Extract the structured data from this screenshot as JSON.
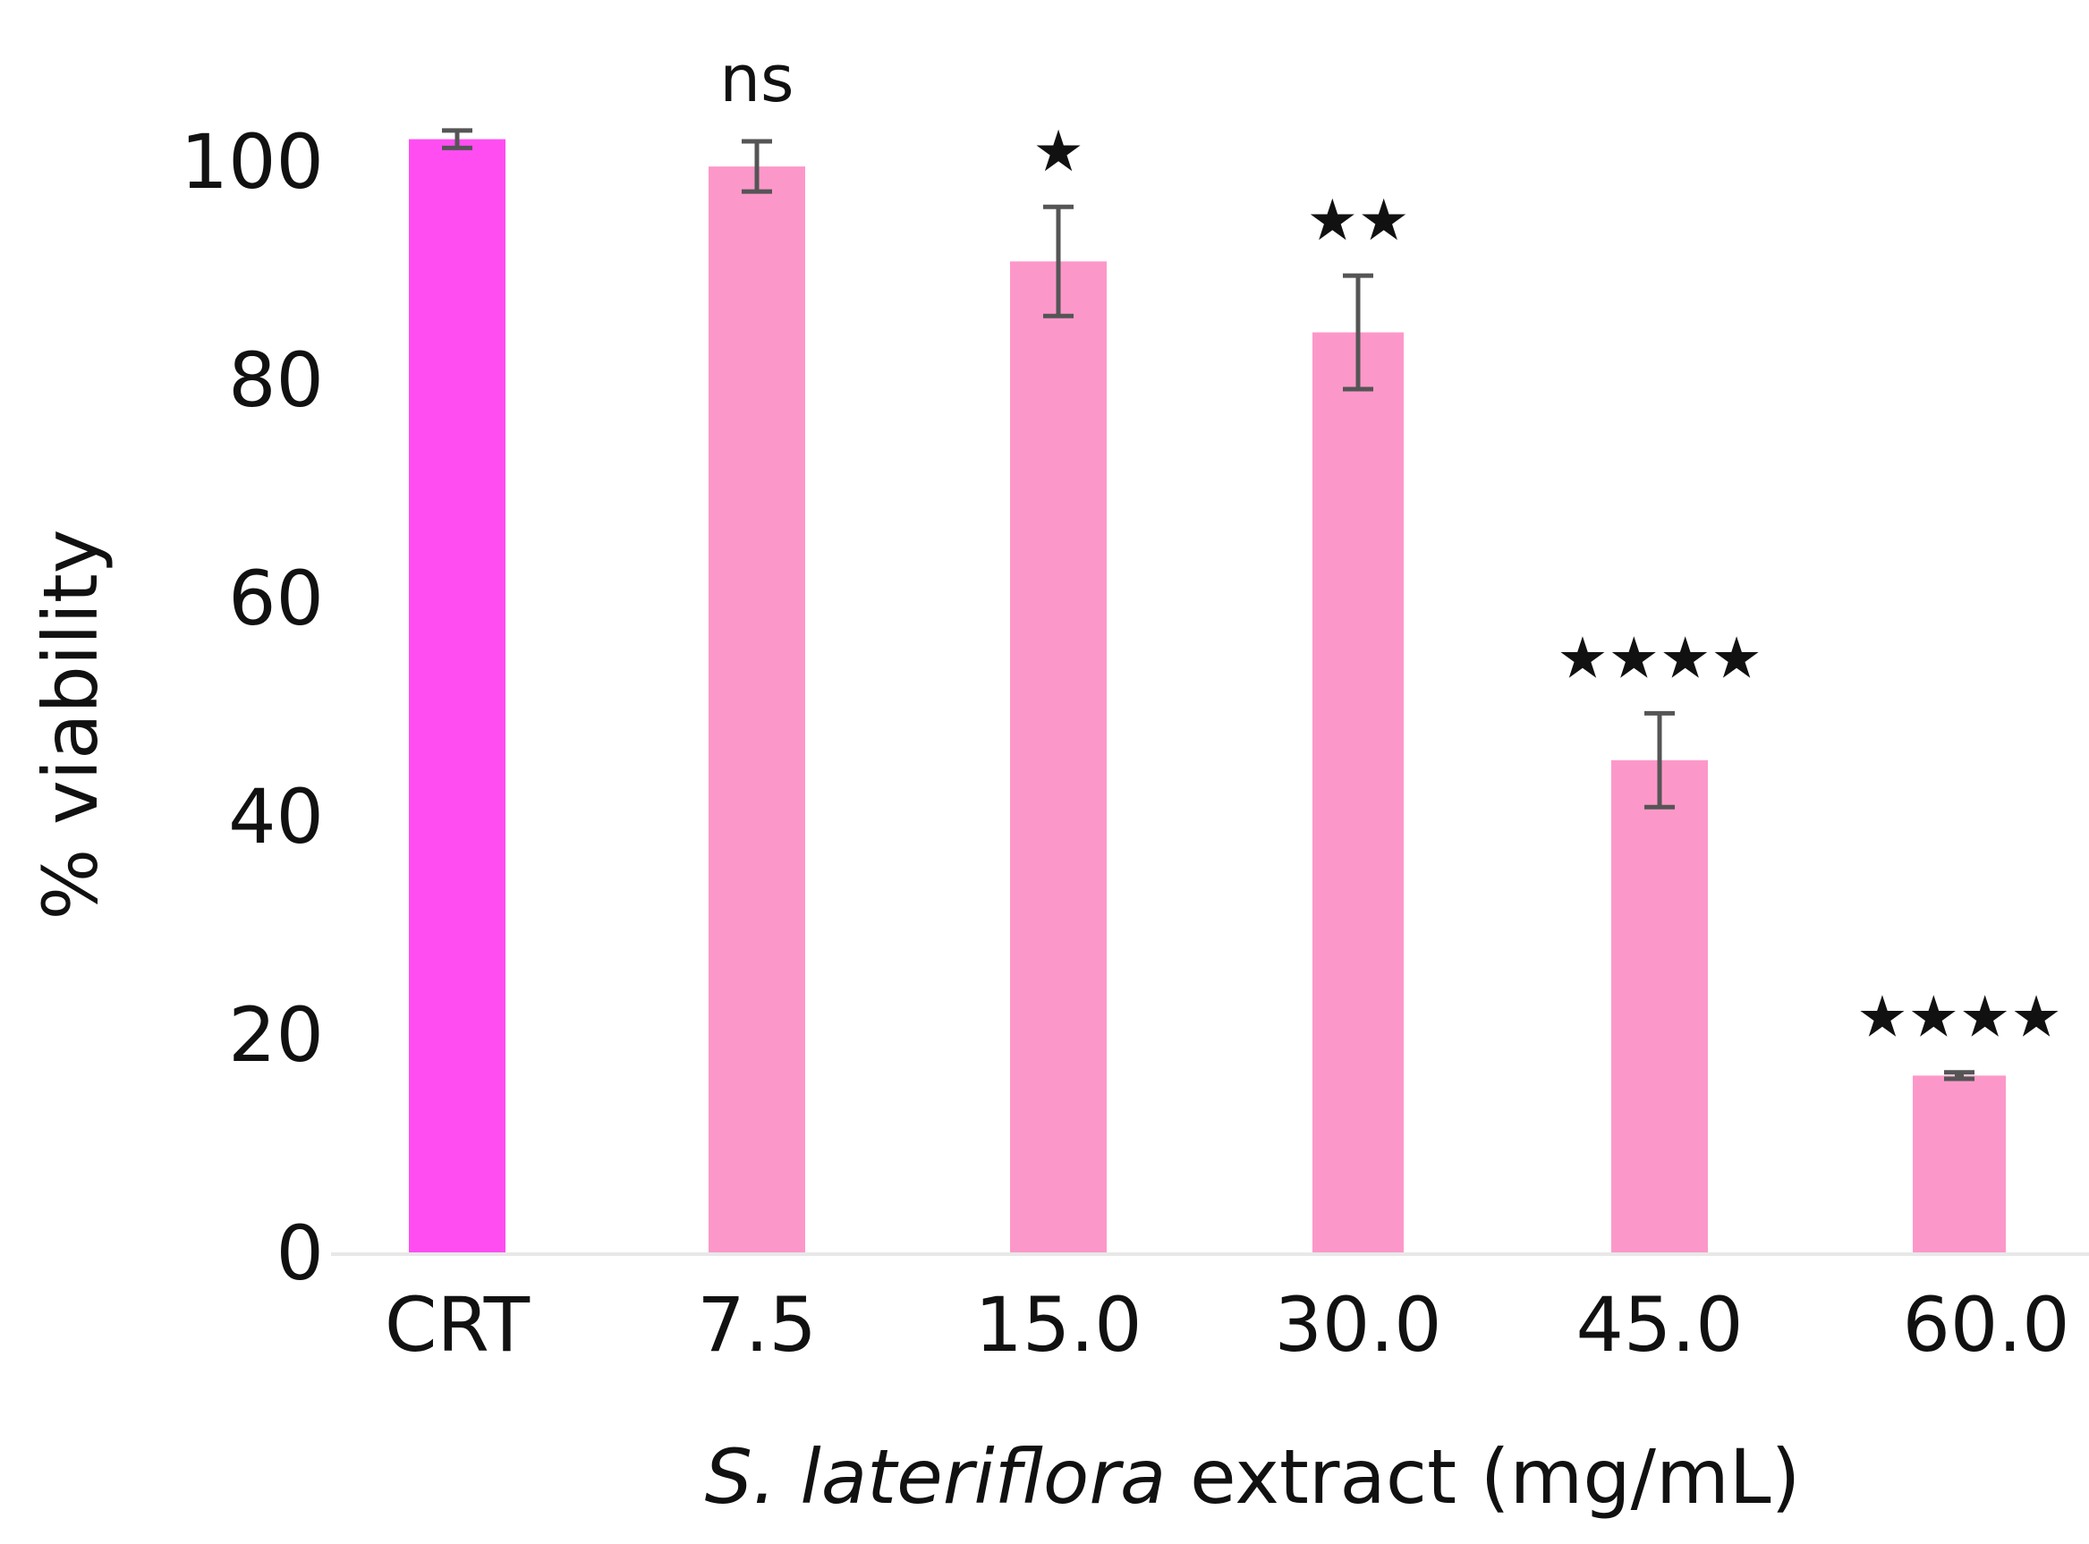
{
  "chart_data": {
    "type": "bar",
    "title": "",
    "categories": [
      "CRT",
      "7.5",
      "15.0",
      "30.0",
      "45.0",
      "60.0"
    ],
    "values": [
      102,
      99.5,
      90.8,
      84.3,
      45.1,
      16.2
    ],
    "errors": [
      0.8,
      2.3,
      5.0,
      5.2,
      4.3,
      0.3
    ],
    "significance": [
      "",
      "ns",
      "★",
      "★★",
      "★★★★",
      "★★★★"
    ],
    "xlabel_italic": "S. lateriflora",
    "xlabel_rest": " extract (mg/mL)",
    "ylabel": "% viability",
    "yticks": [
      0,
      20,
      40,
      60,
      80,
      100
    ],
    "ylim": [
      0,
      100
    ],
    "grid": false,
    "colors": {
      "control": "#ff4df2",
      "treatment": "#fc98c9",
      "errorbar": "#555555",
      "axis_line": "#e8e8e8"
    }
  }
}
